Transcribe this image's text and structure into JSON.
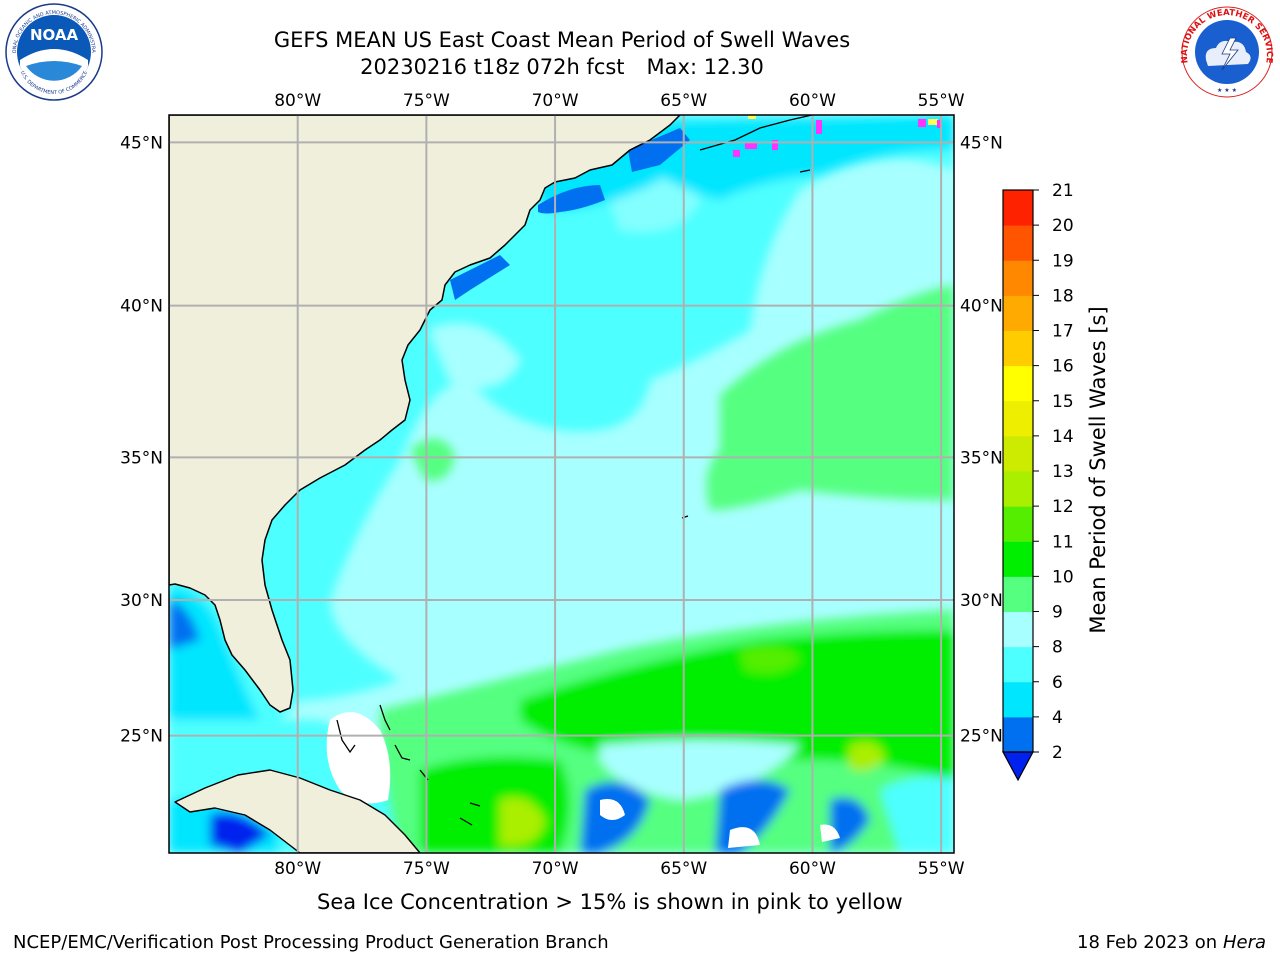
{
  "header": {
    "title_line1": "GEFS MEAN US East Coast Mean Period of Swell Waves",
    "title_run": "20230216 t18z 072h fcst",
    "title_max": "Max: 12.30"
  },
  "logos": {
    "noaa_text": "NOAA",
    "noaa_ring_top": "NATIONAL OCEANIC AND ATMOSPHERIC ADMINISTRATION",
    "noaa_ring_bottom": "U.S. DEPARTMENT OF COMMERCE",
    "nws_ring": "NATIONAL WEATHER SERVICE"
  },
  "map": {
    "lon_ticks": [
      "80°W",
      "75°W",
      "70°W",
      "65°W",
      "60°W",
      "55°W"
    ],
    "lat_ticks_left": [
      "45°N",
      "40°N",
      "35°N",
      "30°N",
      "25°N"
    ],
    "lat_ticks_right": [
      "45°N",
      "40°N",
      "35°N",
      "30°N",
      "25°N"
    ],
    "lon_values": [
      -80,
      -75,
      -70,
      -65,
      -60,
      -55
    ],
    "lat_values": [
      45,
      40,
      35,
      30,
      25
    ],
    "lon_range": [
      -85,
      -54.5
    ],
    "lat_range": [
      20.5,
      45.8
    ],
    "colors": {
      "land": "#efefdc",
      "grid": "#b0b0b0",
      "coast": "#000000"
    }
  },
  "colorbar": {
    "title": "Mean Period of Swell Waves [s]",
    "tick_labels": [
      "2",
      "4",
      "6",
      "8",
      "9",
      "10",
      "11",
      "12",
      "13",
      "14",
      "15",
      "16",
      "17",
      "18",
      "19",
      "20",
      "21"
    ],
    "tick_values": [
      2,
      4,
      6,
      8,
      9,
      10,
      11,
      12,
      13,
      14,
      15,
      16,
      17,
      18,
      19,
      20,
      21
    ],
    "colors": [
      "#0070f0",
      "#00e6ff",
      "#4dffff",
      "#a8ffff",
      "#55ff80",
      "#00ee00",
      "#55ee00",
      "#aaee00",
      "#cceb00",
      "#eeee00",
      "#ffff00",
      "#ffcc00",
      "#ffaa00",
      "#ff8800",
      "#ff5500",
      "#ff2200",
      "#ff0000"
    ],
    "extend_color": "#0022ee"
  },
  "footer": {
    "sea_ice_note": "Sea Ice Concentration > 15% is shown in pink to yellow",
    "branch": "NCEP/EMC/Verification Post Processing Product Generation Branch",
    "date": "18 Feb 2023 on",
    "machine": "Hera"
  }
}
